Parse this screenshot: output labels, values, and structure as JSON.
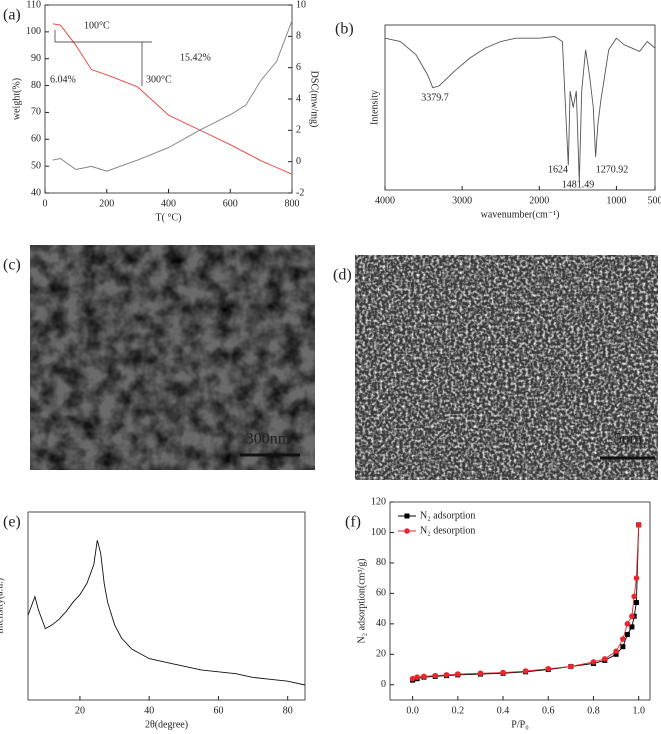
{
  "chart_data": [
    {
      "type": "line",
      "label": "(a)",
      "xlabel": "T( °C)",
      "ylabel": "weight(%)",
      "y2label": "DSC(mw/mg)",
      "x": [
        25,
        50,
        100,
        150,
        200,
        300,
        400,
        500,
        600,
        650,
        700,
        750,
        800
      ],
      "series": [
        {
          "color": "#e8413c",
          "values": [
            103,
            102.5,
            95,
            86,
            84,
            79.5,
            69,
            63.5,
            58,
            55,
            52,
            49.5,
            47
          ]
        },
        {
          "color": "#808080",
          "axis": "y2",
          "values": [
            0.1,
            0.2,
            -0.5,
            -0.3,
            -0.6,
            0.1,
            0.9,
            2,
            3,
            3.6,
            5.2,
            6.4,
            9
          ]
        }
      ],
      "xlim": [
        0,
        800
      ],
      "xticks": [
        0,
        200,
        400,
        600,
        800
      ],
      "ylim": [
        40,
        110
      ],
      "yticks": [
        40,
        50,
        60,
        70,
        80,
        90,
        100,
        110
      ],
      "y2lim": [
        -2,
        10
      ],
      "y2ticks": [
        -2,
        0,
        2,
        4,
        6,
        8,
        10
      ],
      "annotations": [
        "100°C",
        "6.04%",
        "15.42%",
        "300°C"
      ]
    },
    {
      "type": "line",
      "label": "(b)",
      "xlabel": "wavenumber(cm⁻¹)",
      "ylabel": "Intensity",
      "x": [
        4000,
        3800,
        3600,
        3450,
        3380,
        3300,
        3100,
        2900,
        2700,
        2500,
        2300,
        2000,
        1800,
        1700,
        1650,
        1624,
        1600,
        1560,
        1520,
        1481,
        1450,
        1400,
        1350,
        1300,
        1270,
        1240,
        1200,
        1150,
        1100,
        1000,
        900,
        800,
        700,
        600,
        500
      ],
      "series": [
        {
          "color": "#555555",
          "values": [
            92,
            90,
            82,
            70,
            62,
            63,
            72,
            80,
            86,
            90,
            92,
            92,
            93,
            90,
            40,
            15,
            60,
            50,
            60,
            5,
            60,
            85,
            70,
            50,
            20,
            40,
            55,
            70,
            85,
            92,
            88,
            86,
            84,
            90,
            86
          ]
        }
      ],
      "xlim": [
        4000,
        500
      ],
      "xticks": [
        4000,
        3000,
        2000,
        1000,
        500
      ],
      "ylim": [
        0,
        100
      ],
      "annotations": [
        "3379.7",
        "1624",
        "1481.49",
        "1270.92"
      ]
    },
    {
      "type": "image",
      "label": "(c)",
      "scale_bar": "300nm"
    },
    {
      "type": "image",
      "label": "(d)",
      "scale_bar": "5nm"
    },
    {
      "type": "line",
      "label": "(e)",
      "xlabel": "2θ(degree)",
      "ylabel": "Intensity(a.u.)",
      "x": [
        5,
        7,
        8,
        10,
        12,
        14,
        16,
        18,
        20,
        22,
        24,
        25,
        26,
        27,
        28,
        30,
        32,
        35,
        40,
        45,
        50,
        55,
        60,
        65,
        70,
        75,
        80,
        85
      ],
      "series": [
        {
          "color": "#111111",
          "values": [
            45,
            55,
            48,
            38,
            40,
            43,
            47,
            52,
            56,
            62,
            72,
            85,
            78,
            62,
            52,
            40,
            33,
            27,
            22,
            20,
            18,
            16,
            15,
            14,
            12,
            11,
            10,
            8
          ]
        }
      ],
      "xlim": [
        5,
        85
      ],
      "xticks": [
        20,
        40,
        60,
        80
      ],
      "ylim": [
        0,
        100
      ]
    },
    {
      "type": "line",
      "label": "(f)",
      "xlabel": "P/P₀",
      "ylabel": "N₂ adsorption(cm³/g)",
      "legend": "upper left",
      "x": [
        0.0,
        0.02,
        0.05,
        0.1,
        0.15,
        0.2,
        0.3,
        0.4,
        0.5,
        0.6,
        0.7,
        0.8,
        0.85,
        0.9,
        0.93,
        0.95,
        0.97,
        0.98,
        0.99,
        1.0
      ],
      "series": [
        {
          "name": "N₂ adsorption",
          "color": "#000000",
          "marker": "square",
          "values": [
            3,
            4,
            5,
            5.5,
            6,
            6.5,
            7,
            7.5,
            8.5,
            10,
            12,
            14,
            16,
            20,
            25,
            33,
            38,
            45,
            54,
            105
          ]
        },
        {
          "name": "N₂ desorption",
          "color": "#e8262b",
          "marker": "circle",
          "values": [
            4,
            5,
            5.5,
            6,
            6.5,
            7,
            7.5,
            8,
            9,
            10.5,
            12,
            15,
            17,
            22,
            30,
            40,
            45,
            58,
            70,
            105
          ]
        }
      ],
      "xlim": [
        -0.1,
        1.05
      ],
      "xticks": [
        {
          "value": 0.0,
          "label": "0.0"
        },
        0.2,
        0.4,
        0.6,
        0.8,
        {
          "value": 1.0,
          "label": "1.0"
        }
      ],
      "ylim": [
        -10,
        120
      ],
      "yticks": [
        0,
        20,
        40,
        60,
        80,
        100,
        120
      ]
    }
  ]
}
